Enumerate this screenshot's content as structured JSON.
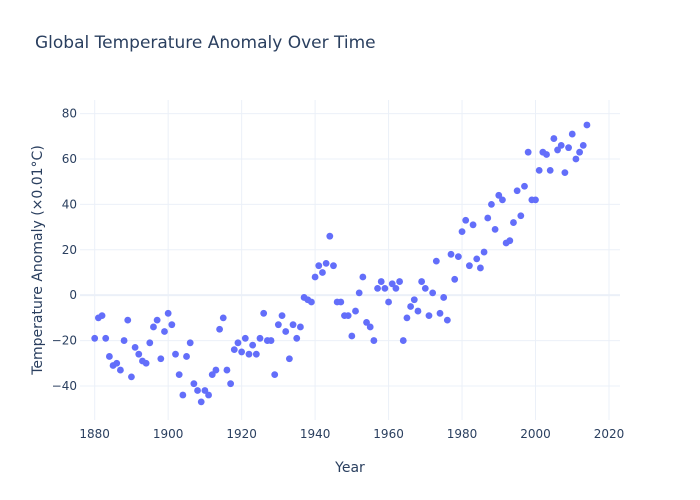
{
  "chart_data": {
    "type": "scatter",
    "title": "Global Temperature Anomaly Over Time",
    "xlabel": "Year",
    "ylabel": "Temperature Anomaly (×0.01°C)",
    "xlim": [
      1876,
      2023
    ],
    "ylim": [
      -55,
      86
    ],
    "xticks": [
      1880,
      1900,
      1920,
      1940,
      1960,
      1980,
      2000,
      2020
    ],
    "yticks": [
      -40,
      -20,
      0,
      20,
      40,
      60,
      80
    ],
    "grid": true,
    "color": "#636efa",
    "x": [
      1880,
      1881,
      1882,
      1883,
      1884,
      1885,
      1886,
      1887,
      1888,
      1889,
      1890,
      1891,
      1892,
      1893,
      1894,
      1895,
      1896,
      1897,
      1898,
      1899,
      1900,
      1901,
      1902,
      1903,
      1904,
      1905,
      1906,
      1907,
      1908,
      1909,
      1910,
      1911,
      1912,
      1913,
      1914,
      1915,
      1916,
      1917,
      1918,
      1919,
      1920,
      1921,
      1922,
      1923,
      1924,
      1925,
      1926,
      1927,
      1928,
      1929,
      1930,
      1931,
      1932,
      1933,
      1934,
      1935,
      1936,
      1937,
      1938,
      1939,
      1940,
      1941,
      1942,
      1943,
      1944,
      1945,
      1946,
      1947,
      1948,
      1949,
      1950,
      1951,
      1952,
      1953,
      1954,
      1955,
      1956,
      1957,
      1958,
      1959,
      1960,
      1961,
      1962,
      1963,
      1964,
      1965,
      1966,
      1967,
      1968,
      1969,
      1970,
      1971,
      1972,
      1973,
      1974,
      1975,
      1976,
      1977,
      1978,
      1979,
      1980,
      1981,
      1982,
      1983,
      1984,
      1985,
      1986,
      1987,
      1988,
      1989,
      1990,
      1991,
      1992,
      1993,
      1994,
      1995,
      1996,
      1997,
      1998,
      1999,
      2000,
      2001,
      2002,
      2003,
      2004,
      2005,
      2006,
      2007,
      2008,
      2009,
      2010,
      2011,
      2012,
      2013,
      2014
    ],
    "y": [
      -19,
      -10,
      -9,
      -19,
      -27,
      -31,
      -30,
      -33,
      -20,
      -11,
      -36,
      -23,
      -26,
      -29,
      -30,
      -21,
      -14,
      -11,
      -28,
      -16,
      -8,
      -13,
      -26,
      -35,
      -44,
      -27,
      -21,
      -39,
      -42,
      -47,
      -42,
      -44,
      -35,
      -33,
      -15,
      -10,
      -33,
      -39,
      -24,
      -21,
      -25,
      -19,
      -26,
      -22,
      -26,
      -19,
      -8,
      -20,
      -20,
      -35,
      -13,
      -9,
      -16,
      -28,
      -13,
      -19,
      -14,
      -1,
      -2,
      -3,
      8,
      13,
      10,
      14,
      26,
      13,
      -3,
      -3,
      -9,
      -9,
      -18,
      -7,
      1,
      8,
      -12,
      -14,
      -20,
      3,
      6,
      3,
      -3,
      5,
      3,
      6,
      -20,
      -10,
      -5,
      -2,
      -7,
      6,
      3,
      -9,
      1,
      15,
      -8,
      -1,
      -11,
      18,
      7,
      17,
      28,
      33,
      13,
      31,
      16,
      12,
      19,
      34,
      40,
      29,
      44,
      42,
      23,
      24,
      32,
      46,
      35,
      48,
      63,
      42,
      42,
      55,
      63,
      62,
      55,
      69,
      64,
      66,
      54,
      65,
      71,
      60,
      63,
      66,
      75
    ]
  }
}
